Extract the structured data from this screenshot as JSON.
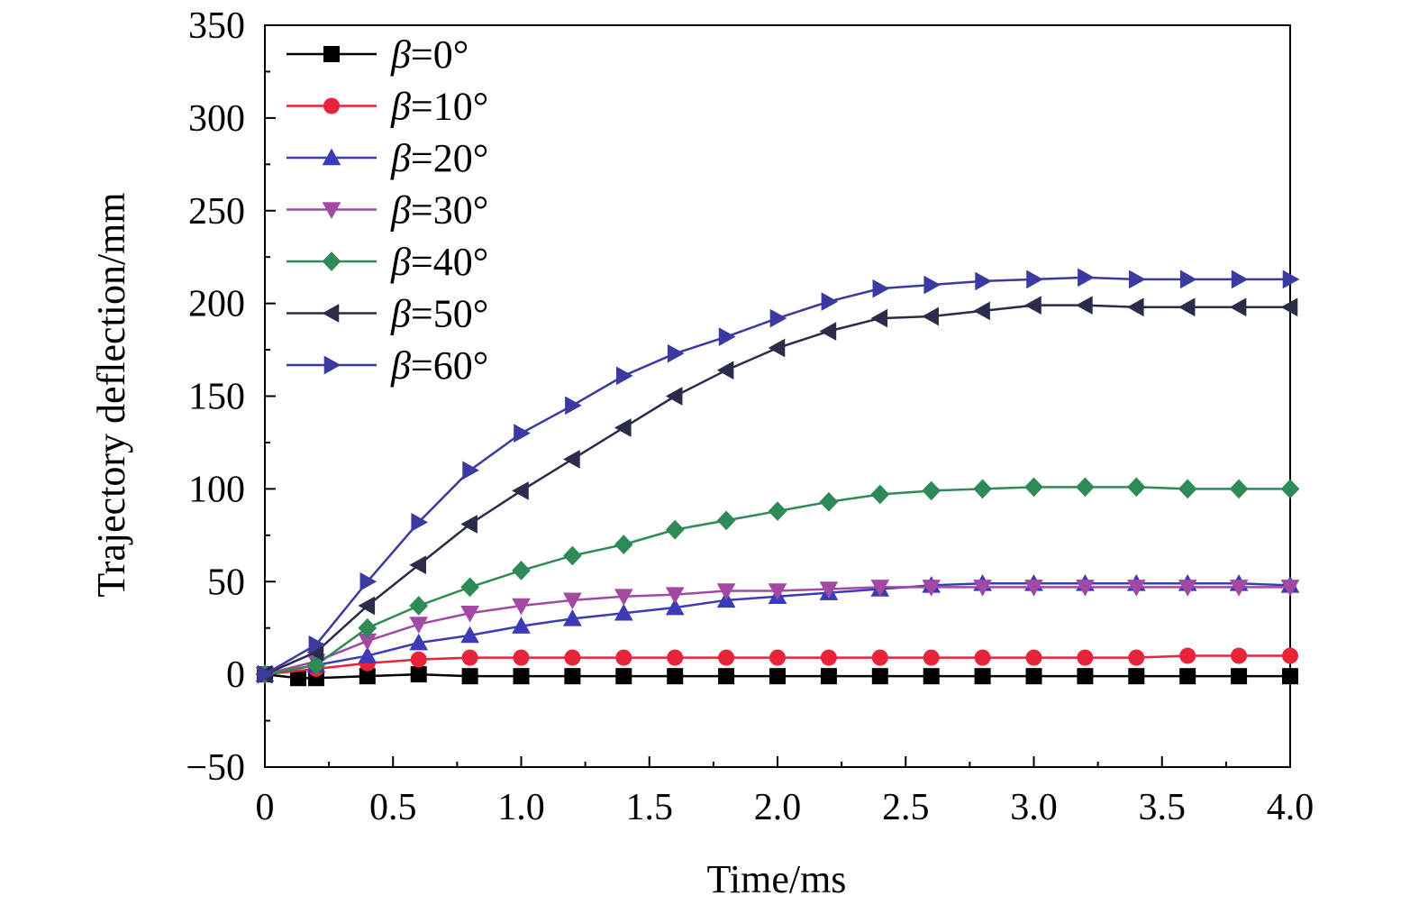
{
  "chart_data": {
    "type": "line",
    "xlabel": "Time/ms",
    "ylabel": "Trajectory deflection/mm",
    "xlim": [
      0,
      4.0
    ],
    "ylim": [
      -50,
      350
    ],
    "xticks": [
      0,
      0.5,
      1.0,
      1.5,
      2.0,
      2.5,
      3.0,
      3.5,
      4.0
    ],
    "xtick_labels": [
      "0",
      "0.5",
      "1.0",
      "1.5",
      "2.0",
      "2.5",
      "3.0",
      "3.5",
      "4.0"
    ],
    "yticks": [
      -50,
      0,
      50,
      100,
      150,
      200,
      250,
      300,
      350
    ],
    "ytick_labels": [
      "−50",
      "0",
      "50",
      "100",
      "150",
      "200",
      "250",
      "300",
      "350"
    ],
    "grid": false,
    "legend_position": "top-left",
    "series": [
      {
        "name": "β=0°",
        "symbol": "β",
        "label_rest": "=0°",
        "color": "#000000",
        "marker": "square",
        "x": [
          0,
          0.13,
          0.2,
          0.4,
          0.6,
          0.8,
          1.0,
          1.2,
          1.4,
          1.6,
          1.8,
          2.0,
          2.2,
          2.4,
          2.6,
          2.8,
          3.0,
          3.2,
          3.4,
          3.6,
          3.8,
          4.0
        ],
        "y": [
          0,
          -2,
          -2,
          -1,
          0,
          -1,
          -1,
          -1,
          -1,
          -1,
          -1,
          -1,
          -1,
          -1,
          -1,
          -1,
          -1,
          -1,
          -1,
          -1,
          -1,
          -1
        ]
      },
      {
        "name": "β=10°",
        "symbol": "β",
        "label_rest": "=10°",
        "color": "#e8233a",
        "marker": "circle",
        "x": [
          0,
          0.2,
          0.4,
          0.6,
          0.8,
          1.0,
          1.2,
          1.4,
          1.6,
          1.8,
          2.0,
          2.2,
          2.4,
          2.6,
          2.8,
          3.0,
          3.2,
          3.4,
          3.6,
          3.8,
          4.0
        ],
        "y": [
          0,
          3,
          6,
          8,
          9,
          9,
          9,
          9,
          9,
          9,
          9,
          9,
          9,
          9,
          9,
          9,
          9,
          9,
          10,
          10,
          10
        ]
      },
      {
        "name": "β=20°",
        "symbol": "β",
        "label_rest": "=20°",
        "color": "#3b3cb5",
        "marker": "triangle-up",
        "x": [
          0,
          0.2,
          0.4,
          0.6,
          0.8,
          1.0,
          1.2,
          1.4,
          1.6,
          1.8,
          2.0,
          2.2,
          2.4,
          2.6,
          2.8,
          3.0,
          3.2,
          3.4,
          3.6,
          3.8,
          4.0
        ],
        "y": [
          0,
          5,
          10,
          17,
          21,
          26,
          30,
          33,
          36,
          40,
          42,
          44,
          46,
          48,
          49,
          49,
          49,
          49,
          49,
          49,
          48
        ]
      },
      {
        "name": "β=30°",
        "symbol": "β",
        "label_rest": "=30°",
        "color": "#a349a4",
        "marker": "triangle-down",
        "x": [
          0,
          0.2,
          0.4,
          0.6,
          0.8,
          1.0,
          1.2,
          1.4,
          1.6,
          1.8,
          2.0,
          2.2,
          2.4,
          2.6,
          2.8,
          3.0,
          3.2,
          3.4,
          3.6,
          3.8,
          4.0
        ],
        "y": [
          0,
          7,
          18,
          27,
          33,
          37,
          40,
          42,
          43,
          45,
          45,
          46,
          47,
          47,
          47,
          47,
          47,
          47,
          47,
          47,
          47
        ]
      },
      {
        "name": "β=40°",
        "symbol": "β",
        "label_rest": "=40°",
        "color": "#2e8b57",
        "marker": "diamond",
        "x": [
          0,
          0.2,
          0.4,
          0.6,
          0.8,
          1.0,
          1.2,
          1.4,
          1.6,
          1.8,
          2.0,
          2.2,
          2.4,
          2.6,
          2.8,
          3.0,
          3.2,
          3.4,
          3.6,
          3.8,
          4.0
        ],
        "y": [
          0,
          5,
          25,
          37,
          47,
          56,
          64,
          70,
          78,
          83,
          88,
          93,
          97,
          99,
          100,
          101,
          101,
          101,
          100,
          100,
          100
        ]
      },
      {
        "name": "β=50°",
        "symbol": "β",
        "label_rest": "=50°",
        "color": "#2b2b4a",
        "marker": "triangle-left",
        "x": [
          0,
          0.2,
          0.4,
          0.6,
          0.8,
          1.0,
          1.2,
          1.4,
          1.6,
          1.8,
          2.0,
          2.2,
          2.4,
          2.6,
          2.8,
          3.0,
          3.2,
          3.4,
          3.6,
          3.8,
          4.0
        ],
        "y": [
          0,
          12,
          37,
          59,
          81,
          99,
          116,
          133,
          150,
          164,
          176,
          185,
          192,
          193,
          196,
          199,
          199,
          198,
          198,
          198,
          198
        ]
      },
      {
        "name": "β=60°",
        "symbol": "β",
        "label_rest": "=60°",
        "color": "#3a3aa0",
        "marker": "triangle-right",
        "x": [
          0,
          0.2,
          0.4,
          0.6,
          0.8,
          1.0,
          1.2,
          1.4,
          1.6,
          1.8,
          2.0,
          2.2,
          2.4,
          2.6,
          2.8,
          3.0,
          3.2,
          3.4,
          3.6,
          3.8,
          4.0
        ],
        "y": [
          0,
          16,
          50,
          82,
          110,
          130,
          145,
          161,
          173,
          182,
          192,
          201,
          208,
          210,
          212,
          213,
          214,
          213,
          213,
          213,
          213
        ]
      }
    ]
  }
}
